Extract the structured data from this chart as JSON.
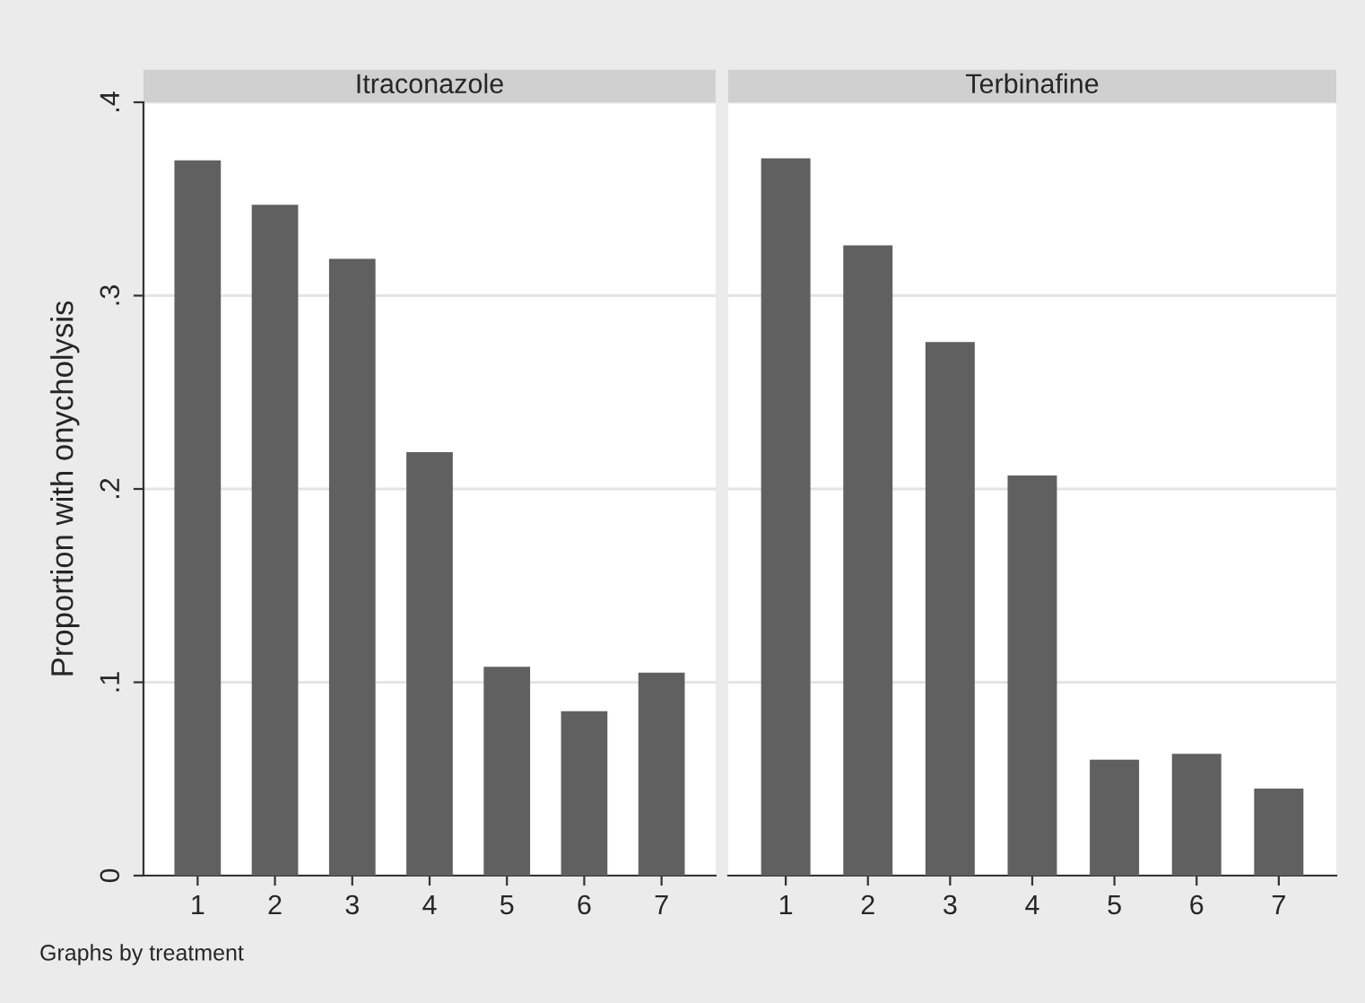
{
  "chart_data": [
    {
      "type": "bar",
      "title": "Itraconazole",
      "ylabel": "Proportion with onycholysis",
      "categories": [
        "1",
        "2",
        "3",
        "4",
        "5",
        "6",
        "7"
      ],
      "values": [
        0.37,
        0.347,
        0.319,
        0.219,
        0.108,
        0.085,
        0.105
      ],
      "color": "#606060",
      "ylim": [
        0,
        0.4
      ],
      "yticks": [
        {
          "value": 0,
          "label": "0"
        },
        {
          "value": 0.1,
          "label": ".1"
        },
        {
          "value": 0.2,
          "label": ".2"
        },
        {
          "value": 0.3,
          "label": ".3"
        },
        {
          "value": 0.4,
          "label": ".4"
        }
      ],
      "grid": "y",
      "annotations": [
        "Graphs by treatment"
      ]
    },
    {
      "type": "bar",
      "title": "Terbinafine",
      "categories": [
        "1",
        "2",
        "3",
        "4",
        "5",
        "6",
        "7"
      ],
      "values": [
        0.371,
        0.326,
        0.276,
        0.207,
        0.06,
        0.063,
        0.045
      ],
      "color": "#606060",
      "ylim": [
        0,
        0.4
      ],
      "yticks": [
        {
          "value": 0,
          "label": null
        },
        {
          "value": 0.1,
          "label": null
        },
        {
          "value": 0.2,
          "label": null
        },
        {
          "value": 0.3,
          "label": null
        },
        {
          "value": 0.4,
          "label": null
        }
      ],
      "grid": "y",
      "tick_labels": "x"
    }
  ]
}
